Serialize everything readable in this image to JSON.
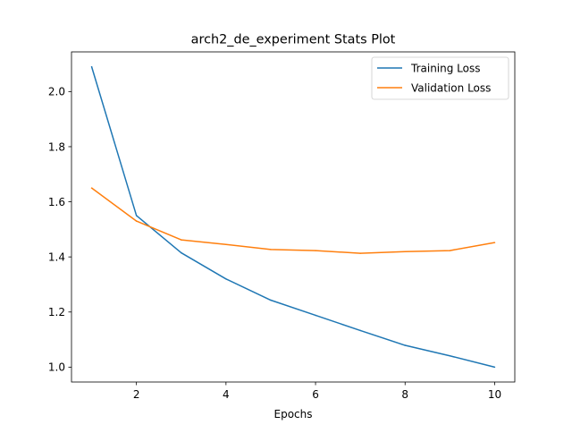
{
  "chart_data": {
    "type": "line",
    "title": "arch2_de_experiment Stats Plot",
    "xlabel": "Epochs",
    "ylabel": "",
    "x": [
      1,
      2,
      3,
      4,
      5,
      6,
      7,
      8,
      9,
      10
    ],
    "xlim": [
      0.55,
      10.45
    ],
    "ylim": [
      0.946,
      2.144
    ],
    "xticks": [
      2,
      4,
      6,
      8,
      10
    ],
    "yticks": [
      1.0,
      1.2,
      1.4,
      1.6,
      1.8,
      2.0
    ],
    "xtick_labels": [
      "2",
      "4",
      "6",
      "8",
      "10"
    ],
    "ytick_labels": [
      "1.0",
      "1.2",
      "1.4",
      "1.6",
      "1.8",
      "2.0"
    ],
    "grid": false,
    "legend_position": "top-right",
    "series": [
      {
        "name": "Training Loss",
        "color": "#1f77b4",
        "values": [
          2.09,
          1.55,
          1.415,
          1.32,
          1.243,
          1.188,
          1.133,
          1.079,
          1.041,
          1.0
        ]
      },
      {
        "name": "Validation Loss",
        "color": "#ff7f0e",
        "values": [
          1.65,
          1.53,
          1.462,
          1.445,
          1.427,
          1.423,
          1.413,
          1.419,
          1.423,
          1.452
        ]
      }
    ]
  }
}
